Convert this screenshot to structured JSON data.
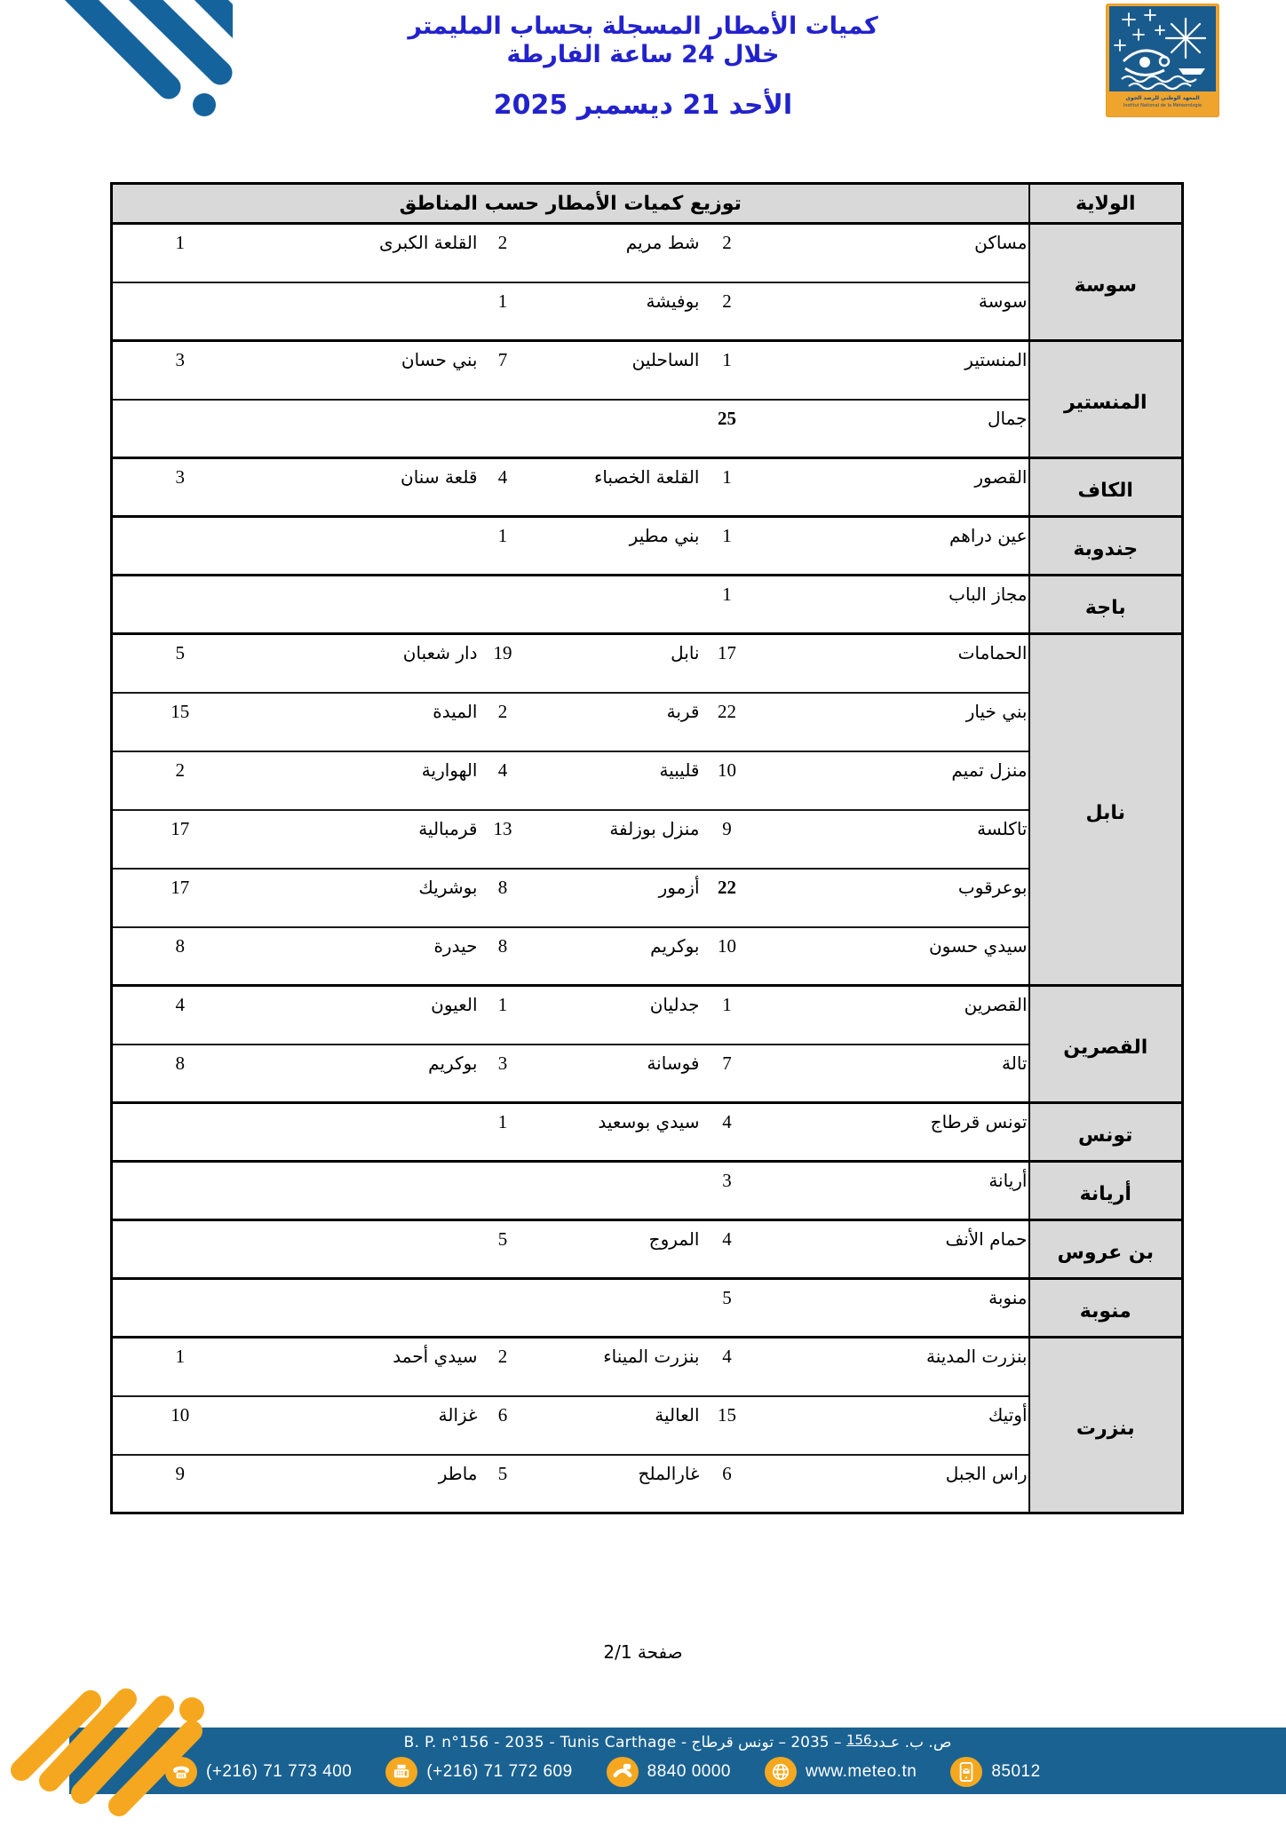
{
  "header": {
    "title_line1": "كميات الأمطار المسجلة بحساب المليمتر",
    "title_line2": "خلال 24 ساعة الفارطة",
    "date": "الأحد 21 ديسمبر 2025",
    "inm_logo": {
      "arabic_name": "المعهد الوطني للرصد الجوي",
      "french_name": "Institut National de la Météorologie"
    }
  },
  "table": {
    "col_wilaya": "الولاية",
    "col_distribution": "توزيع كميات الأمطار حسب المناطق",
    "sections": [
      {
        "wilaya": "سوسة",
        "rows": [
          [
            {
              "n": "مساكن",
              "v": "2"
            },
            {
              "n": "شط مريم",
              "v": "2"
            },
            {
              "n": "القلعة الكبرى",
              "v": "1"
            }
          ],
          [
            {
              "n": "سوسة",
              "v": "2"
            },
            {
              "n": "بوفيشة",
              "v": "1"
            },
            null
          ]
        ]
      },
      {
        "wilaya": "المنستير",
        "rows": [
          [
            {
              "n": "المنستير",
              "v": "1"
            },
            {
              "n": "الساحلين",
              "v": "7"
            },
            {
              "n": "بني حسان",
              "v": "3"
            }
          ],
          [
            {
              "n": "جمال",
              "v": "25",
              "bold": true
            },
            null,
            null
          ]
        ]
      },
      {
        "wilaya": "الكاف",
        "rows": [
          [
            {
              "n": "القصور",
              "v": "1"
            },
            {
              "n": "القلعة الخصباء",
              "v": "4"
            },
            {
              "n": "قلعة سنان",
              "v": "3"
            }
          ]
        ]
      },
      {
        "wilaya": "جندوبة",
        "rows": [
          [
            {
              "n": "عين دراهم",
              "v": "1"
            },
            {
              "n": "بني مطير",
              "v": "1"
            },
            null
          ]
        ]
      },
      {
        "wilaya": "باجة",
        "rows": [
          [
            {
              "n": "مجاز الباب",
              "v": "1"
            },
            null,
            null
          ]
        ]
      },
      {
        "wilaya": "نابل",
        "rows": [
          [
            {
              "n": "الحمامات",
              "v": "17"
            },
            {
              "n": "نابل",
              "v": "19"
            },
            {
              "n": "دار شعبان",
              "v": "5"
            }
          ],
          [
            {
              "n": "بني خيار",
              "v": "22"
            },
            {
              "n": "قربة",
              "v": "2"
            },
            {
              "n": "الميدة",
              "v": "15"
            }
          ],
          [
            {
              "n": "منزل تميم",
              "v": "10"
            },
            {
              "n": "قليبية",
              "v": "4"
            },
            {
              "n": "الهوارية",
              "v": "2"
            }
          ],
          [
            {
              "n": "تاكلسة",
              "v": "9"
            },
            {
              "n": "منزل بوزلفة",
              "v": "13"
            },
            {
              "n": "قرمبالية",
              "v": "17"
            }
          ],
          [
            {
              "n": "بوعرقوب",
              "v": "22",
              "bold": true
            },
            {
              "n": "أزمور",
              "v": "8"
            },
            {
              "n": "بوشريك",
              "v": "17"
            }
          ],
          [
            {
              "n": "سيدي حسون",
              "v": "10"
            },
            {
              "n": "بوكريم",
              "v": "8"
            },
            {
              "n": "حيدرة",
              "v": "8"
            }
          ]
        ]
      },
      {
        "wilaya": "القصرين",
        "rows": [
          [
            {
              "n": "القصرين",
              "v": "1"
            },
            {
              "n": "جدليان",
              "v": "1"
            },
            {
              "n": "العيون",
              "v": "4"
            }
          ],
          [
            {
              "n": "تالة",
              "v": "7"
            },
            {
              "n": "فوسانة",
              "v": "3"
            },
            {
              "n": "بوكريم",
              "v": "8"
            }
          ]
        ]
      },
      {
        "wilaya": "تونس",
        "rows": [
          [
            {
              "n": "تونس قرطاج",
              "v": "4"
            },
            {
              "n": "سيدي بوسعيد",
              "v": "1"
            },
            null
          ]
        ]
      },
      {
        "wilaya": "أريانة",
        "rows": [
          [
            {
              "n": "أريانة",
              "v": "3"
            },
            null,
            null
          ]
        ]
      },
      {
        "wilaya": "بن عروس",
        "rows": [
          [
            {
              "n": "حمام الأنف",
              "v": "4"
            },
            {
              "n": "المروج",
              "v": "5"
            },
            null
          ]
        ]
      },
      {
        "wilaya": "منوبة",
        "rows": [
          [
            {
              "n": "منوبة",
              "v": "5"
            },
            null,
            null
          ]
        ]
      },
      {
        "wilaya": "بنزرت",
        "rows": [
          [
            {
              "n": "بنزرت المدينة",
              "v": "4"
            },
            {
              "n": "بنزرت الميناء",
              "v": "2"
            },
            {
              "n": "سيدي أحمد",
              "v": "1"
            }
          ],
          [
            {
              "n": "أوتيك",
              "v": "15"
            },
            {
              "n": "العالية",
              "v": "6"
            },
            {
              "n": "غزالة",
              "v": "10"
            }
          ],
          [
            {
              "n": "راس الجبل",
              "v": "6"
            },
            {
              "n": "غارالملح",
              "v": "5"
            },
            {
              "n": "ماطر",
              "v": "9"
            }
          ]
        ]
      }
    ]
  },
  "page_label": "صفحة 2/1",
  "footer": {
    "address_ar_pre": "ص. ب. عـدد",
    "address_number": "156",
    "address_ar_post": "– 2035 – تونس قرطاج -",
    "address_latin": "B. P. n°156 - 2035 - Tunis Carthage",
    "contacts": [
      {
        "icon": "telephone-icon",
        "label": "(+216) 71 773 400"
      },
      {
        "icon": "fax-icon",
        "label": "(+216) 71 772 609"
      },
      {
        "icon": "handset-icon",
        "label": "8840 0000"
      },
      {
        "icon": "globe-icon",
        "label": "www.meteo.tn"
      },
      {
        "icon": "mobile-sms-icon",
        "label": "85012"
      }
    ]
  },
  "colors": {
    "title_blue": "#2222cc",
    "footer_blue": "#1a6292",
    "accent_orange": "#f5a81f",
    "header_gray": "#d9d9d9",
    "logo_blue": "#1a5b8e"
  }
}
